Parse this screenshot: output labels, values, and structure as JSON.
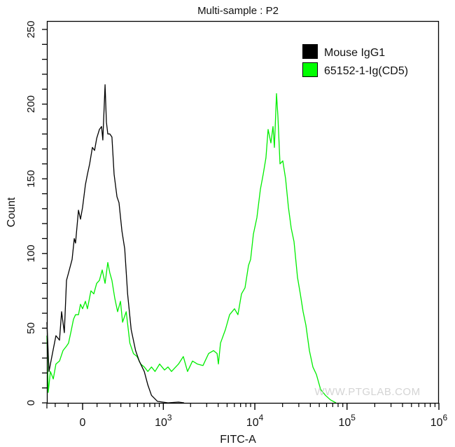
{
  "chart_data": {
    "type": "line",
    "title": "Multi-sample : P2",
    "xlabel": "FITC-A",
    "ylabel": "Count",
    "x_scale": "biexponential",
    "xlim": [
      -275,
      1000000
    ],
    "ylim": [
      0,
      260
    ],
    "grid": false,
    "legend_position": "top-right",
    "y_ticks": [
      0,
      50,
      100,
      150,
      200,
      250
    ],
    "x_ticks": [
      {
        "value": 0,
        "label": "0"
      },
      {
        "value": 1000,
        "label": "10",
        "exp": "3"
      },
      {
        "value": 10000,
        "label": "10",
        "exp": "4"
      },
      {
        "value": 100000,
        "label": "10",
        "exp": "5"
      },
      {
        "value": 1000000,
        "label": "10",
        "exp": "6"
      }
    ],
    "series": [
      {
        "name": "Mouse IgG1",
        "color": "#000000",
        "points": [
          [
            -275,
            54
          ],
          [
            -255,
            21
          ],
          [
            -224,
            33
          ],
          [
            -194,
            45
          ],
          [
            -165,
            42
          ],
          [
            -149,
            61
          ],
          [
            -128,
            47
          ],
          [
            -112,
            82
          ],
          [
            -97,
            87
          ],
          [
            -72,
            96
          ],
          [
            -57,
            110
          ],
          [
            -48,
            107
          ],
          [
            -28,
            129
          ],
          [
            -14,
            123
          ],
          [
            0,
            131
          ],
          [
            19,
            146
          ],
          [
            33,
            153
          ],
          [
            48,
            160
          ],
          [
            67,
            171
          ],
          [
            82,
            169
          ],
          [
            97,
            177
          ],
          [
            117,
            183
          ],
          [
            133,
            185
          ],
          [
            143,
            176
          ],
          [
            160,
            213
          ],
          [
            171,
            188
          ],
          [
            182,
            180
          ],
          [
            199,
            180
          ],
          [
            217,
            178
          ],
          [
            236,
            153
          ],
          [
            262,
            138
          ],
          [
            282,
            134
          ],
          [
            311,
            115
          ],
          [
            341,
            103
          ],
          [
            373,
            73
          ],
          [
            416,
            49
          ],
          [
            473,
            35
          ],
          [
            524,
            28
          ],
          [
            603,
            21
          ],
          [
            664,
            12
          ],
          [
            732,
            5
          ],
          [
            859,
            1
          ],
          [
            1128,
            0
          ],
          [
            1474,
            0.5
          ],
          [
            1700,
            0
          ]
        ]
      },
      {
        "name": "65152-1-Ig(CD5)",
        "color": "#00ee00",
        "points": [
          [
            -275,
            45
          ],
          [
            -262,
            7
          ],
          [
            -242,
            21
          ],
          [
            -217,
            16
          ],
          [
            -194,
            26
          ],
          [
            -165,
            28
          ],
          [
            -138,
            35
          ],
          [
            -112,
            38
          ],
          [
            -97,
            40
          ],
          [
            -77,
            49
          ],
          [
            -62,
            56
          ],
          [
            -48,
            59
          ],
          [
            -28,
            59
          ],
          [
            -14,
            66
          ],
          [
            0,
            63
          ],
          [
            19,
            68
          ],
          [
            33,
            63
          ],
          [
            57,
            75
          ],
          [
            77,
            73
          ],
          [
            97,
            80
          ],
          [
            117,
            82
          ],
          [
            138,
            89
          ],
          [
            160,
            80
          ],
          [
            182,
            94
          ],
          [
            199,
            87
          ],
          [
            217,
            82
          ],
          [
            242,
            70
          ],
          [
            268,
            61
          ],
          [
            296,
            68
          ],
          [
            318,
            54
          ],
          [
            357,
            61
          ],
          [
            399,
            40
          ],
          [
            444,
            33
          ],
          [
            493,
            31
          ],
          [
            546,
            26
          ],
          [
            603,
            24
          ],
          [
            664,
            21
          ],
          [
            732,
            24
          ],
          [
            805,
            21
          ],
          [
            907,
            26
          ],
          [
            1030,
            22
          ],
          [
            1128,
            24
          ],
          [
            1233,
            21
          ],
          [
            1474,
            26
          ],
          [
            1667,
            31
          ],
          [
            1854,
            21
          ],
          [
            2100,
            28
          ],
          [
            2374,
            26
          ],
          [
            2734,
            25
          ],
          [
            3147,
            33
          ],
          [
            3558,
            35
          ],
          [
            3889,
            33
          ],
          [
            4024,
            26
          ],
          [
            4238,
            40
          ],
          [
            4791,
            49
          ],
          [
            5323,
            59
          ],
          [
            6016,
            63
          ],
          [
            6558,
            59
          ],
          [
            7171,
            73
          ],
          [
            7824,
            77
          ],
          [
            8536,
            92
          ],
          [
            8997,
            96
          ],
          [
            9648,
            113
          ],
          [
            10528,
            124
          ],
          [
            11490,
            143
          ],
          [
            12330,
            153
          ],
          [
            13200,
            164
          ],
          [
            13930,
            183
          ],
          [
            14930,
            174
          ],
          [
            15745,
            185
          ],
          [
            16310,
            171
          ],
          [
            17180,
            207
          ],
          [
            17800,
            192
          ],
          [
            18750,
            160
          ],
          [
            20110,
            162
          ],
          [
            21570,
            150
          ],
          [
            23130,
            131
          ],
          [
            24800,
            117
          ],
          [
            26610,
            108
          ],
          [
            29030,
            84
          ],
          [
            31130,
            73
          ],
          [
            33390,
            61
          ],
          [
            35810,
            52
          ],
          [
            39080,
            35
          ],
          [
            42650,
            24
          ],
          [
            46550,
            19
          ],
          [
            51700,
            9
          ],
          [
            58430,
            5
          ],
          [
            66040,
            2
          ],
          [
            75960,
            0
          ]
        ]
      }
    ]
  },
  "watermark": "WWW.PTGLAB.COM"
}
